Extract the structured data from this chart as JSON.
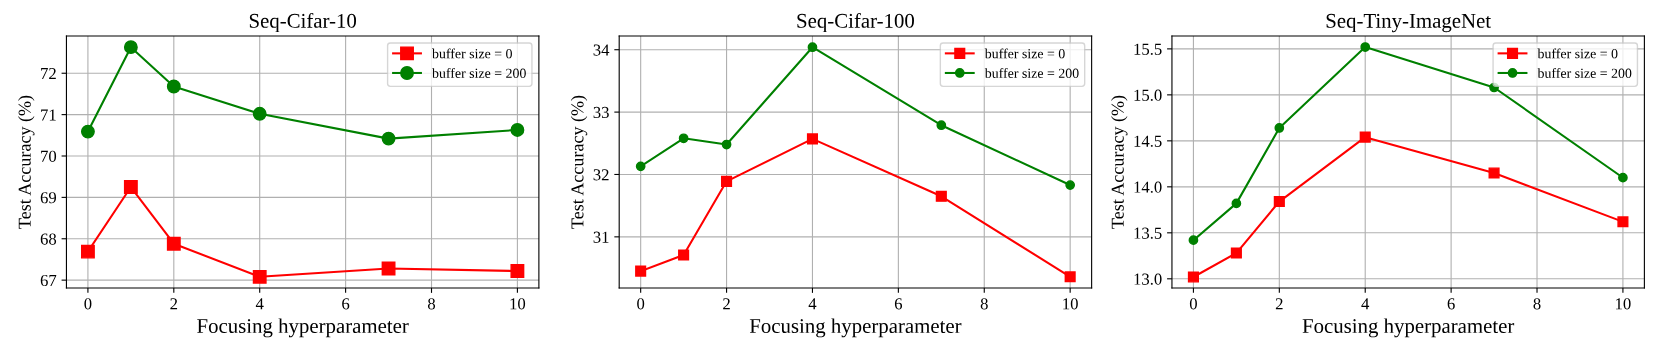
{
  "chart_data": [
    {
      "type": "line",
      "title": "Seq-Cifar-10",
      "xlabel": "Focusing hyperparameter",
      "ylabel": "Test Accuracy (%)",
      "x": [
        0,
        1,
        2,
        4,
        7,
        10
      ],
      "series": [
        {
          "name": "buffer size = 0",
          "color": "#ff0000",
          "marker": "square",
          "values": [
            67.69,
            69.25,
            67.88,
            67.08,
            67.28,
            67.22
          ]
        },
        {
          "name": "buffer size = 200",
          "color": "#008000",
          "marker": "circle",
          "values": [
            70.59,
            72.63,
            71.68,
            71.02,
            70.42,
            70.63
          ]
        }
      ],
      "xlim": [
        -0.5,
        10.5
      ],
      "xticks": [
        0,
        2,
        4,
        6,
        8,
        10
      ],
      "ylim": [
        66.81,
        72.9
      ],
      "yticks": [
        67,
        68,
        69,
        70,
        71,
        72
      ],
      "grid": true,
      "legend": "top right",
      "line_style": "solid"
    },
    {
      "type": "line",
      "title": "Seq-Cifar-100",
      "xlabel": "Focusing hyperparameter",
      "ylabel": "Test Accuracy (%)",
      "x": [
        0,
        1,
        2,
        4,
        7,
        10
      ],
      "series": [
        {
          "name": "buffer size = 0",
          "color": "#ff0000",
          "marker": "square",
          "values": [
            30.45,
            30.71,
            31.89,
            32.57,
            31.65,
            30.36
          ]
        },
        {
          "name": "buffer size = 200",
          "color": "#008000",
          "marker": "circle",
          "values": [
            32.13,
            32.58,
            32.48,
            34.04,
            32.79,
            31.83
          ]
        }
      ],
      "xlim": [
        -0.5,
        10.5
      ],
      "xticks": [
        0,
        2,
        4,
        6,
        8,
        10
      ],
      "ylim": [
        30.18,
        34.22
      ],
      "yticks": [
        31,
        32,
        33,
        34
      ],
      "grid": true,
      "legend": "top right",
      "line_style": "solid"
    },
    {
      "type": "line",
      "title": "Seq-Tiny-ImageNet",
      "xlabel": "Focusing hyperparameter",
      "ylabel": "Test Accuracy (%)",
      "x": [
        0,
        1,
        2,
        4,
        7,
        10
      ],
      "series": [
        {
          "name": "buffer size = 0",
          "color": "#ff0000",
          "marker": "square",
          "values": [
            13.02,
            13.28,
            13.84,
            14.54,
            14.15,
            13.62
          ]
        },
        {
          "name": "buffer size = 200",
          "color": "#008000",
          "marker": "circle",
          "values": [
            13.42,
            13.82,
            14.64,
            15.52,
            15.08,
            14.1
          ]
        }
      ],
      "xlim": [
        -0.5,
        10.5
      ],
      "xticks": [
        0,
        2,
        4,
        6,
        8,
        10
      ],
      "ylim": [
        12.9,
        15.64
      ],
      "yticks": [
        {
          "value": 13,
          "label": "13.0"
        },
        {
          "value": 13.5,
          "label": "13.5"
        },
        {
          "value": 14,
          "label": "14.0"
        },
        {
          "value": 14.5,
          "label": "14.5"
        },
        {
          "value": 15,
          "label": "15.0"
        },
        {
          "value": 15.5,
          "label": "15.5"
        }
      ],
      "grid": true,
      "legend": "top right",
      "line_style": "solid"
    }
  ]
}
